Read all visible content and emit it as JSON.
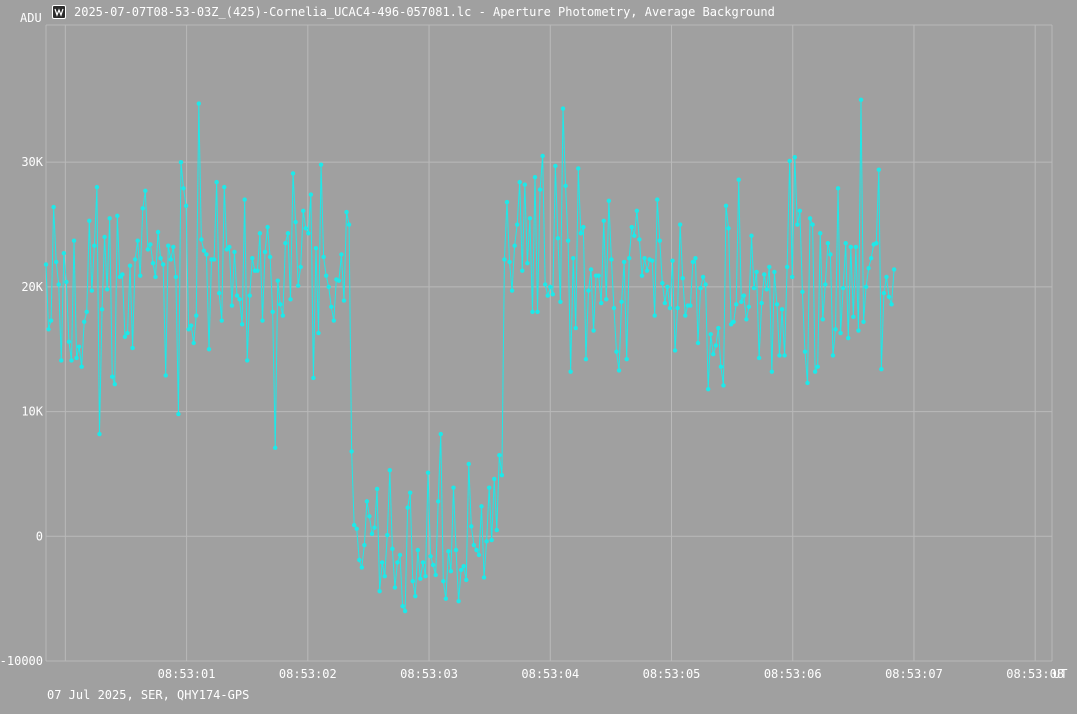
{
  "window": {
    "title": "2025-07-07T08-53-03Z_(425)-Cornelia_UCAC4-496-057081.lc - Aperture Photometry, Average Background",
    "icon": "lightcurve-app-icon"
  },
  "footer": {
    "info": "07 Jul 2025, SER, QHY174-GPS"
  },
  "colors": {
    "background": "#a0a0a0",
    "grid": "#b9b9b9",
    "series": "#1de9e9",
    "text": "#ffffff"
  },
  "chart_data": {
    "type": "line",
    "title": "2025-07-07T08-53-03Z_(425)-Cornelia_UCAC4-496-057081.lc - Aperture Photometry, Average Background",
    "ylabel": "ADU",
    "xlabel": "UT",
    "ylim": [
      -10000,
      41000
    ],
    "xlim": [
      0,
      395
    ],
    "grid": true,
    "yticks": [
      {
        "value": -10000,
        "label": "-10000"
      },
      {
        "value": 0,
        "label": "0"
      },
      {
        "value": 10000,
        "label": "10K"
      },
      {
        "value": 20000,
        "label": "20K"
      },
      {
        "value": 30000,
        "label": "30K"
      }
    ],
    "xticks": [
      {
        "value": 7.6,
        "label": ""
      },
      {
        "value": 55.2,
        "label": "08:53:01"
      },
      {
        "value": 102.8,
        "label": "08:53:02"
      },
      {
        "value": 150.4,
        "label": "08:53:03"
      },
      {
        "value": 198.0,
        "label": "08:53:04"
      },
      {
        "value": 245.6,
        "label": "08:53:05"
      },
      {
        "value": 293.2,
        "label": "08:53:06"
      },
      {
        "value": 340.8,
        "label": "08:53:07"
      },
      {
        "value": 388.4,
        "label": "08:53:08"
      }
    ],
    "series": [
      {
        "values": [
          21800,
          16600,
          17300,
          26400,
          22000,
          20200,
          14100,
          22700,
          20400,
          15600,
          14100,
          23700,
          14300,
          15200,
          13600,
          17200,
          18000,
          25300,
          19700,
          23300,
          28000,
          8200,
          18200,
          24000,
          19800,
          25500,
          12800,
          12200,
          25700,
          20800,
          21000,
          16000,
          16300,
          21700,
          15100,
          22200,
          23700,
          20900,
          26300,
          27700,
          23000,
          23400,
          21900,
          20800,
          24400,
          22300,
          21800,
          12900,
          23300,
          22200,
          23200,
          20800,
          9800,
          30000,
          27900,
          26500,
          16600,
          16900,
          15500,
          17700,
          34700,
          23800,
          22900,
          22600,
          15000,
          22200,
          22200,
          28400,
          19500,
          17300,
          28000,
          23000,
          23200,
          18500,
          22800,
          19300,
          19000,
          17000,
          27000,
          14100,
          19300,
          22300,
          21300,
          21300,
          24300,
          17300,
          22800,
          24800,
          22400,
          18000,
          7100,
          20500,
          18600,
          17700,
          23500,
          24300,
          19000,
          29100,
          25200,
          20100,
          21600,
          26100,
          24700,
          24300,
          27400,
          12700,
          23100,
          16300,
          29800,
          22400,
          20900,
          20000,
          18400,
          17300,
          20600,
          20500,
          22600,
          18900,
          26000,
          25000,
          6800,
          900,
          600,
          -1900,
          -2500,
          -700,
          2800,
          1600,
          200,
          700,
          3800,
          -4400,
          -2100,
          -3200,
          100,
          5300,
          -1000,
          -4100,
          -2100,
          -1500,
          -5600,
          -6000,
          2300,
          3500,
          -3600,
          -4800,
          -1100,
          -3400,
          -2100,
          -3200,
          5100,
          -1600,
          -2300,
          -3100,
          2800,
          8200,
          -3600,
          -5000,
          -1200,
          -2800,
          3900,
          -1100,
          -5200,
          -2700,
          -2400,
          -3500,
          5800,
          800,
          -700,
          -1100,
          -1500,
          2400,
          -3300,
          -400,
          3900,
          -300,
          4600,
          500,
          6500,
          4900,
          22200,
          26800,
          22000,
          19700,
          23300,
          25000,
          28400,
          21300,
          28200,
          21900,
          25500,
          18000,
          28800,
          18000,
          27800,
          30500,
          20200,
          19300,
          20000,
          19400,
          29700,
          23900,
          18800,
          34300,
          28100,
          23700,
          13200,
          22300,
          16700,
          29500,
          24300,
          24800,
          14200,
          19700,
          21400,
          16500,
          20900,
          20900,
          18700,
          25300,
          19000,
          26900,
          22200,
          18300,
          14800,
          13300,
          18800,
          22000,
          14200,
          22300,
          24800,
          24100,
          26100,
          23800,
          20900,
          22300,
          21300,
          22200,
          22100,
          17700,
          27000,
          23700,
          20300,
          18700,
          20000,
          18300,
          22100,
          14900,
          18300,
          25000,
          20700,
          17700,
          18500,
          18500,
          22000,
          22300,
          15500,
          19900,
          20800,
          20200,
          11800,
          16200,
          14600,
          15300,
          16700,
          13600,
          12100,
          26500,
          24700,
          17000,
          17200,
          18600,
          28600,
          18800,
          19300,
          17400,
          18400,
          24100,
          19900,
          21200,
          14300,
          18700,
          21000,
          19800,
          21600,
          13200,
          21200,
          18600,
          14500,
          18200,
          14500,
          21600,
          30100,
          20800,
          30400,
          25000,
          26100,
          19600,
          14800,
          12300,
          25500,
          25000,
          13200,
          13600,
          24300,
          17400,
          20200,
          23500,
          22600,
          14500,
          16600,
          27900,
          16300,
          19900,
          23500,
          15900,
          23200,
          17600,
          23200,
          16500,
          35000,
          17200,
          20000,
          21500,
          22300,
          23400,
          23500,
          29400,
          13400,
          19500,
          20800,
          19200,
          18600,
          21400
        ]
      }
    ]
  }
}
